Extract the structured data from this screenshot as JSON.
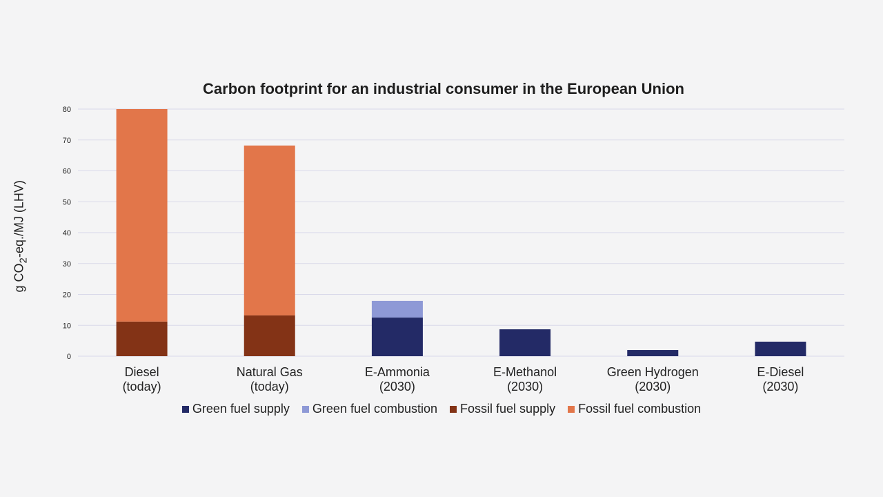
{
  "chart_data": {
    "type": "bar",
    "stacked": true,
    "title": "Carbon footprint for an industrial consumer in the European Union",
    "xlabel": "",
    "ylabel": "g CO2-eq./MJ (LHV)",
    "ylabel_parts": {
      "pre": "g CO",
      "sub": "2",
      "post": "-eq./MJ (LHV)"
    },
    "ylim": [
      0,
      80
    ],
    "yticks": [
      0,
      10,
      20,
      30,
      40,
      50,
      60,
      70,
      80
    ],
    "grid": true,
    "legend_position": "bottom",
    "categories": [
      {
        "line1": "Diesel",
        "line2": "(today)"
      },
      {
        "line1": "Natural Gas",
        "line2": "(today)"
      },
      {
        "line1": "E-Ammonia",
        "line2": "(2030)"
      },
      {
        "line1": "E-Methanol",
        "line2": "(2030)"
      },
      {
        "line1": "Green Hydrogen",
        "line2": "(2030)"
      },
      {
        "line1": "E-Diesel",
        "line2": "(2030)"
      }
    ],
    "series": [
      {
        "name": "Green fuel supply",
        "color": "#232a66",
        "values": [
          0,
          0,
          12.5,
          8.7,
          2.0,
          4.7
        ]
      },
      {
        "name": "Green fuel combustion",
        "color": "#8e99d6",
        "values": [
          0,
          0,
          5.4,
          0,
          0,
          0
        ]
      },
      {
        "name": "Fossil fuel supply",
        "color": "#833316",
        "values": [
          11.2,
          13.2,
          0,
          0,
          0,
          0
        ]
      },
      {
        "name": "Fossil fuel combustion",
        "color": "#e2764a",
        "values": [
          68.8,
          55.0,
          0,
          0,
          0,
          0
        ]
      }
    ]
  }
}
